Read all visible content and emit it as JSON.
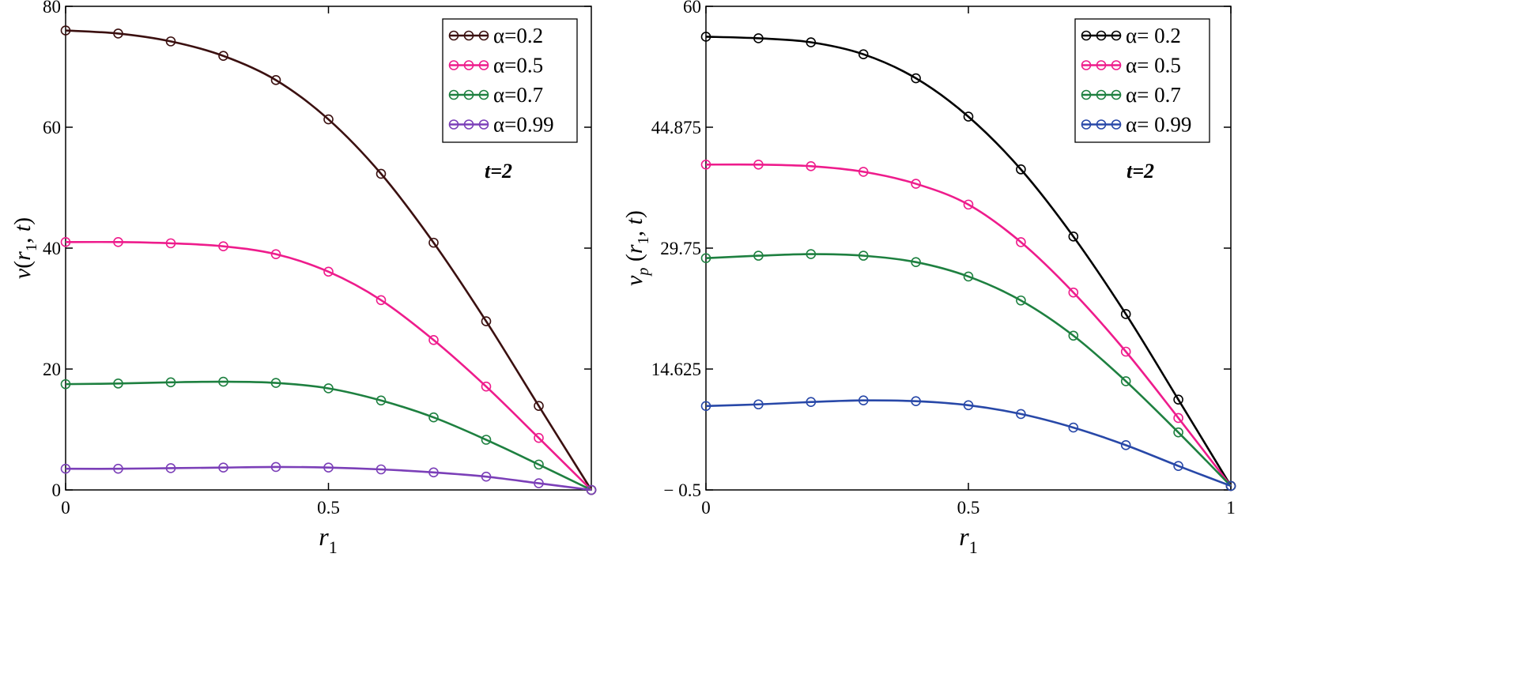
{
  "chart_data": [
    {
      "type": "line",
      "ylabel_main": "v",
      "ylabel_sub": "",
      "ylabel_args": "r",
      "ylabel_args_sub": "1",
      "ylabel_args_tail": ", t",
      "xlabel_main": "r",
      "xlabel_sub": "1",
      "annotation": "t=2",
      "xlim": [
        0,
        1
      ],
      "ylim": [
        0,
        80
      ],
      "x_ticks": [
        "0",
        "0.5"
      ],
      "x_tick_values": [
        0,
        0.5
      ],
      "y_ticks": [
        "0",
        "20",
        "40",
        "60",
        "80"
      ],
      "y_tick_values": [
        0,
        20,
        40,
        60,
        80
      ],
      "legend_position": "top-right",
      "x": [
        0,
        0.1,
        0.2,
        0.3,
        0.4,
        0.5,
        0.6,
        0.7,
        0.8,
        0.9,
        1.0
      ],
      "series": [
        {
          "name": "α=0.2",
          "color": "#3b1010",
          "values": [
            76,
            75.5,
            74.2,
            71.8,
            67.8,
            61.3,
            52.3,
            40.9,
            27.9,
            13.9,
            0
          ]
        },
        {
          "name": "α=0.5",
          "color": "#ee1c8c",
          "values": [
            41,
            41,
            40.8,
            40.3,
            39,
            36.1,
            31.4,
            24.8,
            17.1,
            8.6,
            0
          ]
        },
        {
          "name": "α=0.7",
          "color": "#1e8040",
          "values": [
            17.5,
            17.6,
            17.8,
            17.9,
            17.7,
            16.8,
            14.8,
            12,
            8.3,
            4.2,
            0
          ]
        },
        {
          "name": "α=0.99",
          "color": "#7b3fb8",
          "values": [
            3.5,
            3.5,
            3.6,
            3.7,
            3.8,
            3.7,
            3.4,
            2.9,
            2.2,
            1.1,
            0
          ]
        }
      ]
    },
    {
      "type": "line",
      "ylabel_main": "v",
      "ylabel_sub": "p",
      "ylabel_args": "r",
      "ylabel_args_sub": "1",
      "ylabel_args_tail": ", t",
      "xlabel_main": "r",
      "xlabel_sub": "1",
      "annotation": "t=2",
      "xlim": [
        0,
        1
      ],
      "ylim": [
        -0.5,
        60
      ],
      "x_ticks": [
        "0",
        "0.5",
        "1"
      ],
      "x_tick_values": [
        0,
        0.5,
        1
      ],
      "y_ticks": [
        "− 0.5",
        "14.625",
        "29.75",
        "44.875",
        "60"
      ],
      "y_tick_values": [
        -0.5,
        14.625,
        29.75,
        44.875,
        60
      ],
      "legend_position": "top-right",
      "x": [
        0,
        0.1,
        0.2,
        0.3,
        0.4,
        0.5,
        0.6,
        0.7,
        0.8,
        0.9,
        1.0
      ],
      "series": [
        {
          "name": "α= 0.2",
          "color": "#000000",
          "values": [
            56.2,
            56,
            55.5,
            54,
            51,
            46.2,
            39.6,
            31.2,
            21.5,
            10.8,
            0
          ]
        },
        {
          "name": "α= 0.5",
          "color": "#ee1c8c",
          "values": [
            40.2,
            40.2,
            40,
            39.3,
            37.8,
            35.2,
            30.5,
            24.2,
            16.8,
            8.5,
            0
          ]
        },
        {
          "name": "α= 0.7",
          "color": "#1e8040",
          "values": [
            28.5,
            28.8,
            29,
            28.8,
            28,
            26.2,
            23.2,
            18.8,
            13.1,
            6.7,
            0
          ]
        },
        {
          "name": "α= 0.99",
          "color": "#2848a8",
          "values": [
            10,
            10.2,
            10.5,
            10.7,
            10.6,
            10.1,
            9,
            7.3,
            5.1,
            2.5,
            0
          ]
        }
      ]
    }
  ]
}
